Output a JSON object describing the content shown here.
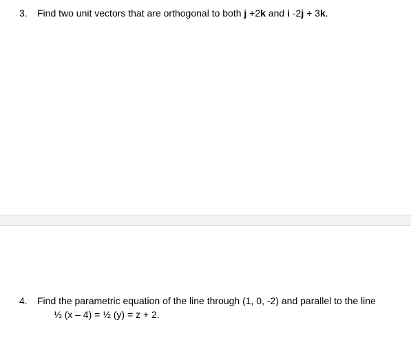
{
  "q3": {
    "num": "3.",
    "t1": "Find two unit vectors that are orthogonal to both ",
    "v1": "j",
    "t2": " +2",
    "v2": "k",
    "t3": " and ",
    "v3": "i",
    "t4": " -2",
    "v4": "j",
    "t5": " + 3",
    "v5": "k",
    "t6": "."
  },
  "q4": {
    "num": "4.",
    "line1": "Find the parametric equation of the line through (1, 0, -2) and parallel to the line",
    "line2": "⅓ (x – 4) = ½ (y) = z + 2."
  }
}
